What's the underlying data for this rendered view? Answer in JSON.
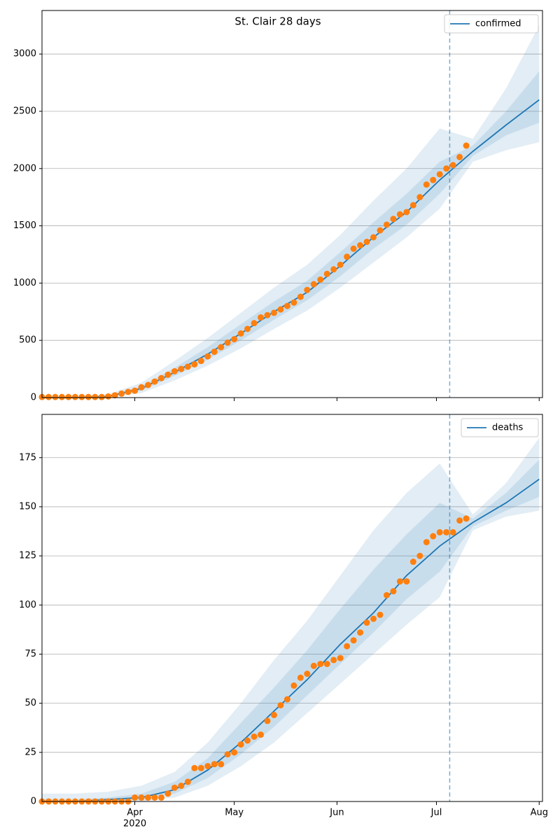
{
  "title": "St. Clair 28 days",
  "chart_data": [
    {
      "type": "line",
      "xlim": [
        0,
        151
      ],
      "ylim": [
        0,
        3380
      ],
      "yticks": [
        0,
        500,
        1000,
        1500,
        2000,
        2500,
        3000
      ],
      "grid": true,
      "legend": "upper right",
      "vline": 123,
      "series": [
        {
          "name": "confirmed",
          "color": "#1f77b4",
          "x": [
            0,
            10,
            20,
            30,
            40,
            50,
            60,
            70,
            80,
            90,
            100,
            110,
            120,
            130,
            140,
            150
          ],
          "values": [
            0,
            0,
            10,
            80,
            220,
            380,
            560,
            750,
            920,
            1150,
            1400,
            1620,
            1900,
            2150,
            2380,
            2600
          ]
        }
      ],
      "bands": [
        {
          "lower": [
            0,
            0,
            0,
            40,
            150,
            280,
            430,
            600,
            760,
            960,
            1180,
            1400,
            1650,
            2060,
            2160,
            2230
          ],
          "upper": [
            0,
            5,
            30,
            130,
            320,
            520,
            740,
            960,
            1160,
            1420,
            1720,
            2000,
            2350,
            2260,
            2700,
            3250
          ]
        },
        {
          "lower": [
            0,
            0,
            5,
            60,
            190,
            330,
            500,
            680,
            850,
            1060,
            1300,
            1510,
            1780,
            2110,
            2290,
            2400
          ],
          "upper": [
            0,
            2,
            18,
            100,
            260,
            440,
            640,
            840,
            1020,
            1270,
            1530,
            1780,
            2060,
            2200,
            2500,
            2850
          ]
        }
      ],
      "observed": {
        "color": "#ff7f0e",
        "x": [
          0,
          2,
          4,
          6,
          8,
          10,
          12,
          14,
          16,
          18,
          20,
          22,
          24,
          26,
          28,
          30,
          32,
          34,
          36,
          38,
          40,
          42,
          44,
          46,
          48,
          50,
          52,
          54,
          56,
          58,
          60,
          62,
          64,
          66,
          68,
          70,
          72,
          74,
          76,
          78,
          80,
          82,
          84,
          86,
          88,
          90,
          92,
          94,
          96,
          98,
          100,
          102,
          104,
          106,
          108,
          110,
          112,
          114,
          116,
          118,
          120,
          122,
          124,
          126,
          128
        ],
        "values": [
          5,
          5,
          5,
          5,
          5,
          5,
          5,
          5,
          5,
          5,
          10,
          20,
          35,
          50,
          60,
          90,
          110,
          140,
          170,
          200,
          230,
          250,
          270,
          290,
          320,
          360,
          400,
          440,
          480,
          510,
          560,
          600,
          650,
          700,
          720,
          740,
          770,
          800,
          830,
          880,
          940,
          990,
          1030,
          1080,
          1120,
          1160,
          1230,
          1300,
          1330,
          1360,
          1400,
          1460,
          1510,
          1560,
          1600,
          1620,
          1680,
          1750,
          1860,
          1900,
          1950,
          2000,
          2030,
          2100,
          2200
        ]
      }
    },
    {
      "type": "line",
      "xlim": [
        0,
        151
      ],
      "ylim": [
        0,
        197
      ],
      "yticks": [
        0,
        25,
        50,
        75,
        100,
        125,
        150,
        175
      ],
      "xticks": [
        {
          "value": 28,
          "label": "Apr"
        },
        {
          "value": 58,
          "label": "May"
        },
        {
          "value": 89,
          "label": "Jun"
        },
        {
          "value": 119,
          "label": "Jul"
        },
        {
          "value": 150,
          "label": "Aug"
        }
      ],
      "xtick_year": "2020",
      "grid": true,
      "legend": "upper right",
      "vline": 123,
      "series": [
        {
          "name": "deaths",
          "color": "#1f77b4",
          "x": [
            0,
            10,
            20,
            30,
            40,
            50,
            60,
            70,
            80,
            90,
            100,
            110,
            120,
            130,
            140,
            150
          ],
          "values": [
            0,
            0,
            1,
            2,
            6,
            16,
            30,
            46,
            62,
            80,
            96,
            115,
            130,
            142,
            152,
            164
          ]
        }
      ],
      "bands": [
        {
          "lower": [
            0,
            0,
            0,
            0,
            2,
            8,
            18,
            30,
            45,
            60,
            75,
            90,
            104,
            138,
            145,
            148
          ],
          "upper": [
            4,
            4,
            5,
            8,
            15,
            30,
            50,
            72,
            92,
            115,
            138,
            157,
            172,
            146,
            162,
            185
          ]
        },
        {
          "lower": [
            0,
            0,
            0,
            1,
            4,
            12,
            24,
            38,
            54,
            70,
            86,
            103,
            117,
            140,
            148,
            155
          ],
          "upper": [
            1,
            1,
            2,
            4,
            10,
            22,
            40,
            58,
            77,
            98,
            118,
            136,
            152,
            144,
            157,
            174
          ]
        }
      ],
      "observed": {
        "color": "#ff7f0e",
        "x": [
          0,
          2,
          4,
          6,
          8,
          10,
          12,
          14,
          16,
          18,
          20,
          22,
          24,
          26,
          28,
          30,
          32,
          34,
          36,
          38,
          40,
          42,
          44,
          46,
          48,
          50,
          52,
          54,
          56,
          58,
          60,
          62,
          64,
          66,
          68,
          70,
          72,
          74,
          76,
          78,
          80,
          82,
          84,
          86,
          88,
          90,
          92,
          94,
          96,
          98,
          100,
          102,
          104,
          106,
          108,
          110,
          112,
          114,
          116,
          118,
          120,
          122,
          124,
          126,
          128
        ],
        "values": [
          0,
          0,
          0,
          0,
          0,
          0,
          0,
          0,
          0,
          0,
          0,
          0,
          0,
          0,
          2,
          2,
          2,
          2,
          2,
          4,
          7,
          8,
          10,
          17,
          17,
          18,
          19,
          19,
          24,
          25,
          29,
          31,
          33,
          34,
          41,
          44,
          49,
          52,
          59,
          63,
          65,
          69,
          70,
          70,
          72,
          73,
          79,
          82,
          86,
          91,
          93,
          95,
          105,
          107,
          112,
          112,
          122,
          125,
          132,
          135,
          137,
          137,
          137,
          143,
          144
        ]
      }
    }
  ]
}
